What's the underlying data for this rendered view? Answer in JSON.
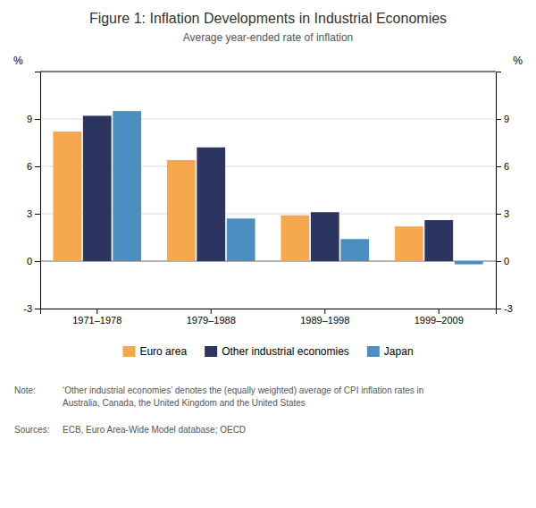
{
  "chart_data": {
    "type": "bar",
    "title": "Figure 1: Inflation Developments in Industrial Economies",
    "subtitle": "Average year-ended rate of inflation",
    "ylabel": "%",
    "y2label": "%",
    "categories": [
      "1971–1978",
      "1979–1988",
      "1989–1998",
      "1999–2009"
    ],
    "series": [
      {
        "name": "Euro area",
        "color": "#F5A84E",
        "values": [
          8.2,
          6.4,
          2.9,
          2.2
        ]
      },
      {
        "name": "Other industrial economies",
        "color": "#2B3560",
        "values": [
          9.2,
          7.2,
          3.1,
          2.6
        ]
      },
      {
        "name": "Japan",
        "color": "#4A8FC0",
        "values": [
          9.5,
          2.7,
          1.4,
          -0.2
        ]
      }
    ],
    "ylim": [
      -3,
      12
    ],
    "yticks": [
      -3,
      0,
      3,
      6,
      9
    ],
    "y2lim": [
      -3,
      12
    ],
    "y2ticks": [
      -3,
      0,
      3,
      6,
      9
    ],
    "grid": true,
    "legend": "bottom",
    "annotations": [
      {
        "label": "Note:",
        "text": "‘Other industrial economies’ denotes the (equally weighted) average of CPI inflation rates in\nAustralia, Canada, the United Kingdom and the United States"
      },
      {
        "label": "Sources:",
        "text": "ECB, Euro Area-Wide Model database; OECD"
      }
    ]
  }
}
